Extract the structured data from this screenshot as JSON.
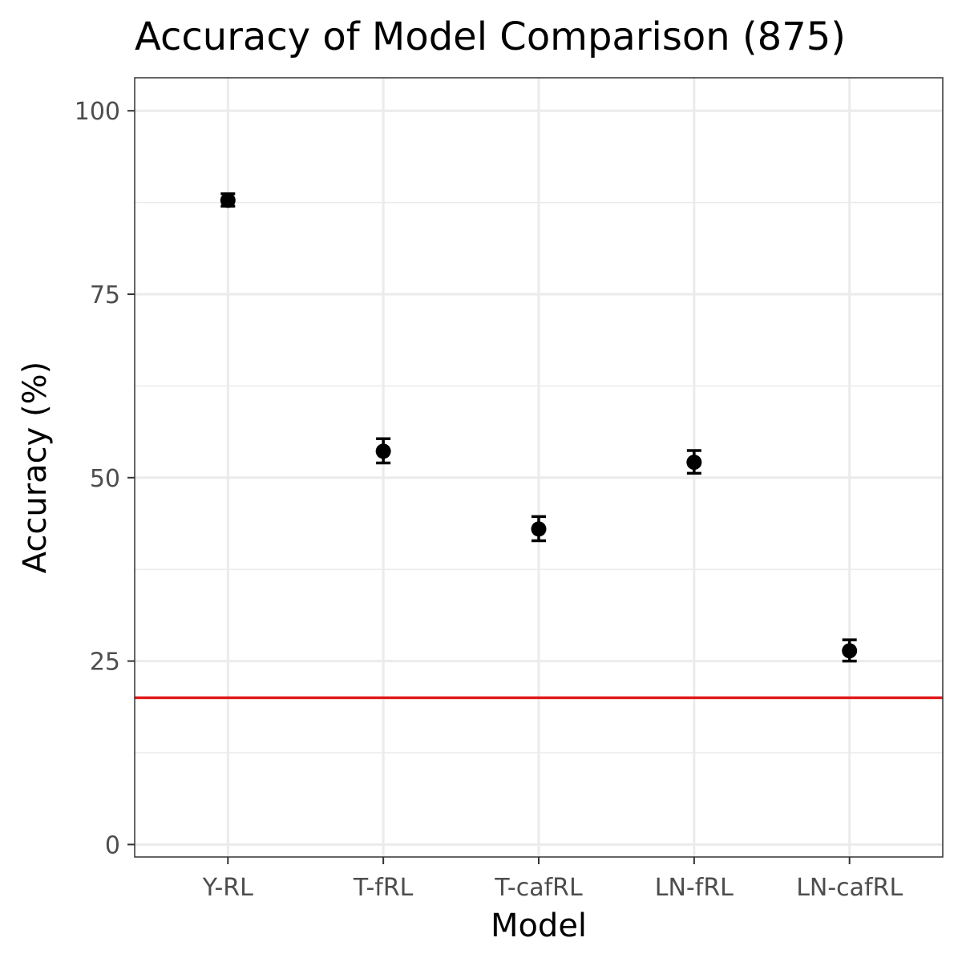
{
  "chart_data": {
    "type": "scatter",
    "title": "Accuracy of Model Comparison (875)",
    "xlabel": "Model",
    "ylabel": "Accuracy (%)",
    "categories": [
      "Y-RL",
      "T-fRL",
      "T-cafRL",
      "LN-fRL",
      "LN-cafRL"
    ],
    "values": [
      87.8,
      53.6,
      43.0,
      52.1,
      26.4
    ],
    "error_low": [
      87.0,
      52.0,
      41.4,
      50.6,
      25.0
    ],
    "error_high": [
      88.7,
      55.3,
      44.7,
      53.7,
      27.9
    ],
    "ylim": [
      -1.7,
      104.5
    ],
    "yticks": [
      "0",
      "25",
      "50",
      "75",
      "100"
    ],
    "grid": true,
    "legend": "none",
    "reference_line": {
      "y": 20,
      "color": "#e31a1c"
    },
    "point_color": "#000000"
  }
}
